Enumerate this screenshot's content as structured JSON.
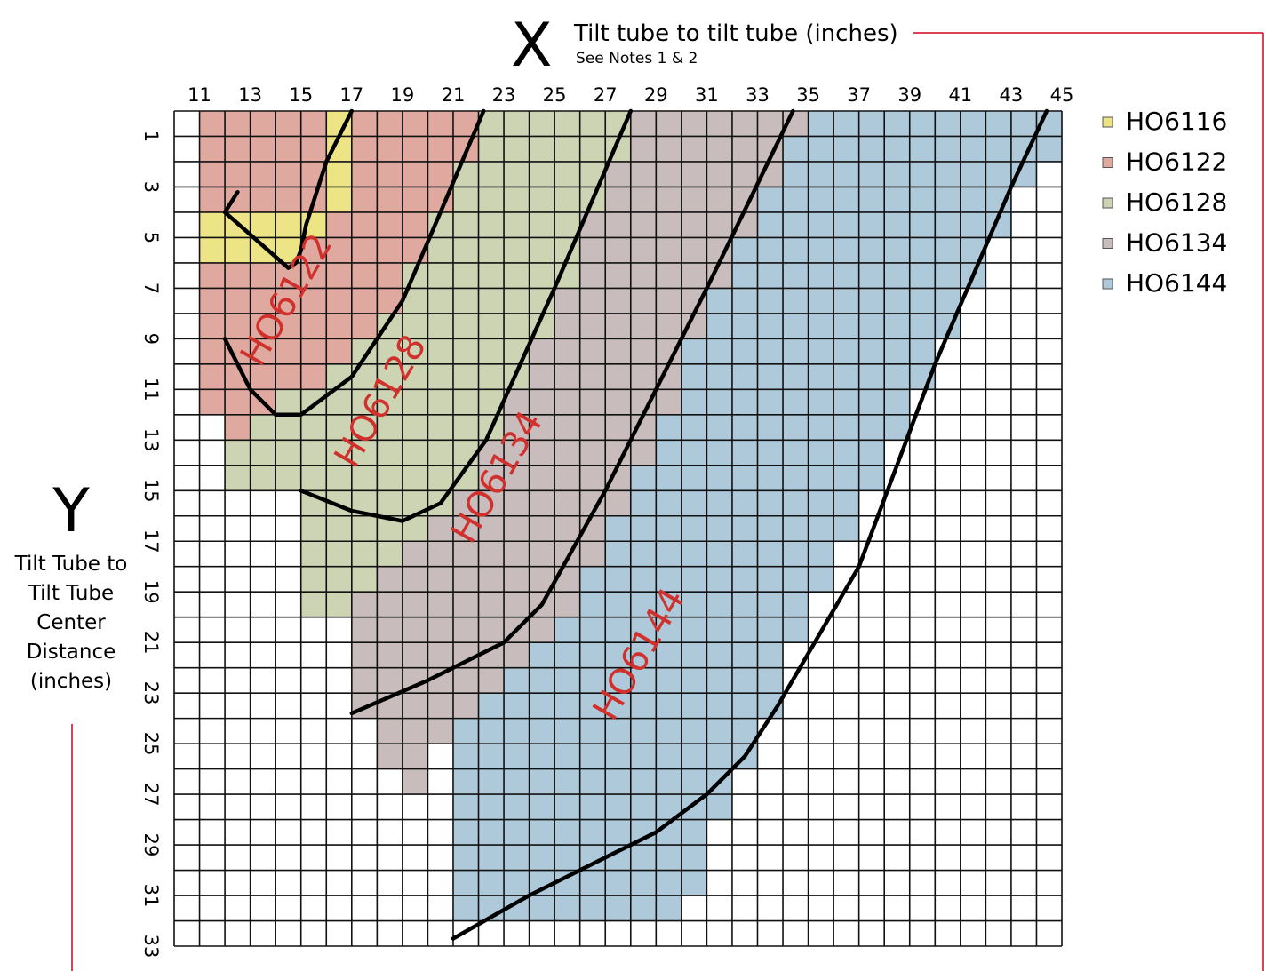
{
  "header": {
    "x_letter": "X",
    "x_title": "Tilt tube to tilt tube (inches)",
    "x_note": "See Notes 1 & 2",
    "y_letter": "Y",
    "y_title_lines": [
      "Tilt Tube to",
      "Tilt Tube",
      "Center",
      "Distance",
      "(inches)"
    ]
  },
  "colors": {
    "accent_line": "#d0021b",
    "grid": "#111111",
    "curve": "#000000",
    "region_label": "#d0312d"
  },
  "chart_data": {
    "type": "area",
    "title": "",
    "xlabel": "Tilt tube to tilt tube (inches)",
    "ylabel": "Tilt Tube to Tilt Tube Center Distance (inches)",
    "xlim": [
      10,
      45
    ],
    "ylim": [
      0,
      33
    ],
    "y_inverted": true,
    "grid": true,
    "legend_position": "top-right",
    "x_ticks": [
      11,
      13,
      15,
      17,
      19,
      21,
      23,
      25,
      27,
      29,
      31,
      33,
      35,
      37,
      39,
      41,
      43,
      45
    ],
    "y_ticks": [
      1,
      3,
      5,
      7,
      9,
      11,
      13,
      15,
      17,
      19,
      21,
      23,
      25,
      27,
      29,
      31,
      33
    ],
    "series": [
      {
        "name": "HO6144",
        "color": "#aec9d9",
        "cells": [
          [
            21,
            0,
            45
          ],
          [
            21,
            1,
            45
          ],
          [
            21,
            2,
            44
          ],
          [
            21,
            3,
            43
          ],
          [
            21,
            4,
            43
          ],
          [
            21,
            5,
            42
          ],
          [
            21,
            6,
            42
          ],
          [
            21,
            7,
            41
          ],
          [
            21,
            8,
            41
          ],
          [
            21,
            9,
            40
          ],
          [
            21,
            10,
            40
          ],
          [
            21,
            11,
            39
          ],
          [
            21,
            12,
            39
          ],
          [
            21,
            13,
            38
          ],
          [
            21,
            14,
            38
          ],
          [
            21,
            15,
            37
          ],
          [
            21,
            16,
            37
          ],
          [
            21,
            17,
            36
          ],
          [
            21,
            18,
            36
          ],
          [
            21,
            19,
            35
          ],
          [
            21,
            20,
            35
          ],
          [
            21,
            21,
            34
          ],
          [
            21,
            22,
            34
          ],
          [
            21,
            23,
            34
          ],
          [
            21,
            24,
            33
          ],
          [
            21,
            25,
            33
          ],
          [
            21,
            26,
            32
          ],
          [
            21,
            27,
            32
          ],
          [
            21,
            28,
            31
          ],
          [
            21,
            29,
            31
          ],
          [
            21,
            30,
            31
          ],
          [
            21,
            31,
            30
          ]
        ],
        "boundary": [
          [
            44.4,
            0
          ],
          [
            43,
            3
          ],
          [
            40,
            10
          ],
          [
            37,
            18
          ],
          [
            33.8,
            23.5
          ],
          [
            32.5,
            25.5
          ],
          [
            31,
            27
          ],
          [
            29,
            28.5
          ],
          [
            26,
            30
          ],
          [
            24,
            31
          ],
          [
            21,
            32.7
          ]
        ],
        "label": "HO6144"
      },
      {
        "name": "HO6134",
        "color": "#c8bcbc",
        "cells": [
          [
            16,
            0,
            35
          ],
          [
            16,
            1,
            34
          ],
          [
            16,
            2,
            34
          ],
          [
            16,
            3,
            33
          ],
          [
            16,
            4,
            33
          ],
          [
            16,
            5,
            32
          ],
          [
            16,
            6,
            32
          ],
          [
            16,
            7,
            31
          ],
          [
            16,
            8,
            31
          ],
          [
            16,
            9,
            30
          ],
          [
            16,
            10,
            30
          ],
          [
            16,
            11,
            30
          ],
          [
            16,
            12,
            29
          ],
          [
            16,
            13,
            29
          ],
          [
            16,
            14,
            28
          ],
          [
            16,
            15,
            28
          ],
          [
            16,
            16,
            27
          ],
          [
            16,
            17,
            27
          ],
          [
            16,
            18,
            26
          ],
          [
            17,
            19,
            26
          ],
          [
            17,
            20,
            25
          ],
          [
            17,
            21,
            24
          ],
          [
            17,
            22,
            23
          ],
          [
            17,
            23,
            22
          ],
          [
            18,
            24,
            21
          ],
          [
            18,
            25,
            20
          ],
          [
            19,
            26,
            20
          ],
          [
            19,
            27,
            19
          ],
          [
            20,
            28,
            18
          ],
          [
            20,
            29,
            17
          ]
        ],
        "boundary": [
          [
            34.4,
            0
          ],
          [
            31,
            7
          ],
          [
            27,
            15
          ],
          [
            24.5,
            19.5
          ],
          [
            23,
            21
          ],
          [
            20,
            22.5
          ],
          [
            17,
            23.8
          ]
        ],
        "label": "HO6134"
      },
      {
        "name": "HO6128",
        "color": "#cdd4b4",
        "cells": [
          [
            12,
            0,
            28
          ],
          [
            12,
            1,
            28
          ],
          [
            12,
            2,
            27
          ],
          [
            12,
            3,
            27
          ],
          [
            12,
            4,
            26
          ],
          [
            12,
            5,
            26
          ],
          [
            12,
            6,
            26
          ],
          [
            12,
            7,
            25
          ],
          [
            12,
            8,
            25
          ],
          [
            12,
            9,
            24
          ],
          [
            12,
            10,
            24
          ],
          [
            12,
            11,
            23
          ],
          [
            12,
            12,
            23
          ],
          [
            12,
            13,
            22
          ],
          [
            12,
            14,
            22
          ],
          [
            15,
            15,
            21
          ],
          [
            15,
            16,
            20
          ],
          [
            15,
            17,
            19
          ],
          [
            15,
            18,
            18
          ],
          [
            15,
            19,
            17
          ]
        ],
        "boundary": [
          [
            28,
            0
          ],
          [
            25,
            7
          ],
          [
            22.3,
            13
          ],
          [
            20.5,
            15.5
          ],
          [
            19,
            16.2
          ],
          [
            17,
            15.8
          ],
          [
            15,
            15
          ]
        ],
        "label": "HO6128"
      },
      {
        "name": "HO6122",
        "color": "#e0a9a0",
        "cells": [
          [
            11,
            0,
            22
          ],
          [
            11,
            1,
            22
          ],
          [
            11,
            2,
            21
          ],
          [
            11,
            3,
            21
          ],
          [
            11,
            4,
            20
          ],
          [
            11,
            5,
            20
          ],
          [
            11,
            6,
            19
          ],
          [
            11,
            7,
            19
          ],
          [
            11,
            8,
            18
          ],
          [
            11,
            9,
            17
          ],
          [
            11,
            10,
            16
          ],
          [
            11,
            11,
            14
          ],
          [
            12,
            12,
            13
          ]
        ],
        "boundary": [
          [
            22.2,
            0
          ],
          [
            20.5,
            4
          ],
          [
            19,
            7.5
          ],
          [
            17,
            10.5
          ],
          [
            15,
            12
          ],
          [
            14,
            12
          ],
          [
            13,
            11
          ],
          [
            12,
            9
          ]
        ],
        "label": "HO6122"
      },
      {
        "name": "HO6116",
        "color": "#ede486",
        "cells": [
          [
            16,
            0,
            17
          ],
          [
            16,
            1,
            17
          ],
          [
            16,
            2,
            17
          ],
          [
            16,
            3,
            17
          ],
          [
            11,
            4,
            16
          ],
          [
            11,
            5,
            15
          ]
        ],
        "boundary": [
          [
            17,
            0
          ],
          [
            16,
            2
          ],
          [
            15.2,
            4.5
          ],
          [
            15,
            5.5
          ],
          [
            14.8,
            6
          ],
          [
            14.5,
            6.2
          ],
          [
            12,
            4
          ],
          [
            12.5,
            3.2
          ]
        ],
        "label": ""
      }
    ],
    "region_labels": [
      {
        "text": "HO6122",
        "x": 14.5,
        "y": 7.5
      },
      {
        "text": "HO6128",
        "x": 18.2,
        "y": 11.5
      },
      {
        "text": "HO6134",
        "x": 22.8,
        "y": 14.5
      },
      {
        "text": "HO6144",
        "x": 28.4,
        "y": 21.5
      }
    ],
    "legend": [
      {
        "name": "HO6116",
        "color": "#ede486"
      },
      {
        "name": "HO6122",
        "color": "#e0a9a0"
      },
      {
        "name": "HO6128",
        "color": "#cdd4b4"
      },
      {
        "name": "HO6134",
        "color": "#c8bcbc"
      },
      {
        "name": "HO6144",
        "color": "#aec9d9"
      }
    ]
  }
}
